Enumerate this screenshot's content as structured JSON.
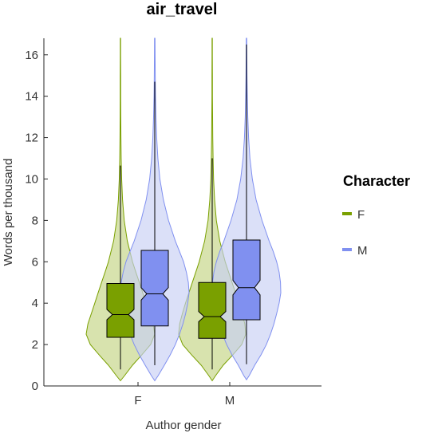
{
  "chart_data": {
    "type": "violin",
    "title": "air_travel",
    "xlabel": "Author gender",
    "ylabel": "Words per thousand",
    "ylim": [
      0,
      16.8
    ],
    "yticks": [
      0,
      2,
      4,
      6,
      8,
      10,
      12,
      14,
      16
    ],
    "categories": [
      "F",
      "M"
    ],
    "legend": {
      "title": "Character",
      "placement": "right",
      "entries": [
        {
          "name": "F",
          "color": "#7aa000"
        },
        {
          "name": "M",
          "color": "#8090f0"
        }
      ]
    },
    "series": [
      {
        "name": "F",
        "color": "#7aa000",
        "fill": "#c3d483",
        "groups": [
          {
            "category": "F",
            "box": {
              "q1": 2.35,
              "median": 3.45,
              "q3": 4.95,
              "notch_low": 3.2,
              "notch_high": 3.7,
              "whisker_low": 0.8,
              "whisker_high": 10.65
            },
            "violin": {
              "ymin": 0.25,
              "ymax": 16.8,
              "y": [
                0.25,
                0.5,
                1.0,
                1.5,
                2.0,
                2.5,
                3.0,
                3.5,
                4.0,
                4.5,
                5.0,
                5.5,
                6.0,
                7.0,
                8.0,
                9.0,
                10.0,
                11.0,
                12.0,
                13.0,
                14.0,
                15.0,
                16.0,
                16.8
              ],
              "w": [
                0.0,
                0.12,
                0.35,
                0.62,
                0.88,
                1.0,
                0.95,
                0.85,
                0.75,
                0.65,
                0.55,
                0.45,
                0.35,
                0.2,
                0.11,
                0.06,
                0.035,
                0.022,
                0.015,
                0.01,
                0.008,
                0.006,
                0.005,
                0.005
              ]
            }
          },
          {
            "category": "M",
            "box": {
              "q1": 2.3,
              "median": 3.35,
              "q3": 5.0,
              "notch_low": 3.1,
              "notch_high": 3.6,
              "whisker_low": 0.8,
              "whisker_high": 11.0
            },
            "violin": {
              "ymin": 0.25,
              "ymax": 16.8,
              "y": [
                0.25,
                0.5,
                1.0,
                1.5,
                2.0,
                2.5,
                3.0,
                3.5,
                4.0,
                4.5,
                5.0,
                5.5,
                6.0,
                7.0,
                8.0,
                9.0,
                10.0,
                11.0,
                12.0,
                13.0,
                14.0,
                15.0,
                16.0,
                16.8
              ],
              "w": [
                0.0,
                0.1,
                0.32,
                0.6,
                0.86,
                0.98,
                0.95,
                0.87,
                0.78,
                0.68,
                0.58,
                0.48,
                0.38,
                0.22,
                0.12,
                0.07,
                0.04,
                0.025,
                0.016,
                0.011,
                0.008,
                0.006,
                0.005,
                0.005
              ]
            }
          }
        ]
      },
      {
        "name": "M",
        "color": "#8090f0",
        "fill": "#c8cff5",
        "groups": [
          {
            "category": "F",
            "box": {
              "q1": 2.9,
              "median": 4.45,
              "q3": 6.55,
              "notch_low": 4.15,
              "notch_high": 4.75,
              "whisker_low": 1.0,
              "whisker_high": 14.7
            },
            "violin": {
              "ymin": 0.25,
              "ymax": 16.8,
              "y": [
                0.25,
                0.5,
                1.0,
                1.5,
                2.0,
                2.5,
                3.0,
                3.5,
                4.0,
                4.5,
                5.0,
                5.5,
                6.0,
                6.5,
                7.0,
                8.0,
                9.0,
                10.0,
                11.0,
                12.0,
                13.0,
                14.0,
                15.0,
                16.0,
                16.8
              ],
              "w": [
                0.0,
                0.1,
                0.28,
                0.45,
                0.6,
                0.72,
                0.82,
                0.9,
                0.96,
                1.0,
                0.98,
                0.92,
                0.84,
                0.72,
                0.6,
                0.4,
                0.25,
                0.15,
                0.09,
                0.055,
                0.035,
                0.022,
                0.014,
                0.009,
                0.006
              ]
            }
          },
          {
            "category": "M",
            "box": {
              "q1": 3.2,
              "median": 4.75,
              "q3": 7.05,
              "notch_low": 4.4,
              "notch_high": 5.1,
              "whisker_low": 1.05,
              "whisker_high": 16.5
            },
            "violin": {
              "ymin": 0.3,
              "ymax": 16.8,
              "y": [
                0.3,
                0.5,
                1.0,
                1.5,
                2.0,
                2.5,
                3.0,
                3.5,
                4.0,
                4.5,
                5.0,
                5.5,
                6.0,
                6.5,
                7.0,
                8.0,
                9.0,
                10.0,
                11.0,
                12.0,
                13.0,
                14.0,
                15.0,
                16.0,
                16.8
              ],
              "w": [
                0.0,
                0.08,
                0.24,
                0.42,
                0.58,
                0.7,
                0.8,
                0.88,
                0.95,
                1.0,
                0.99,
                0.95,
                0.88,
                0.78,
                0.66,
                0.45,
                0.28,
                0.17,
                0.1,
                0.06,
                0.038,
                0.024,
                0.015,
                0.01,
                0.007
              ]
            }
          }
        ]
      }
    ]
  }
}
